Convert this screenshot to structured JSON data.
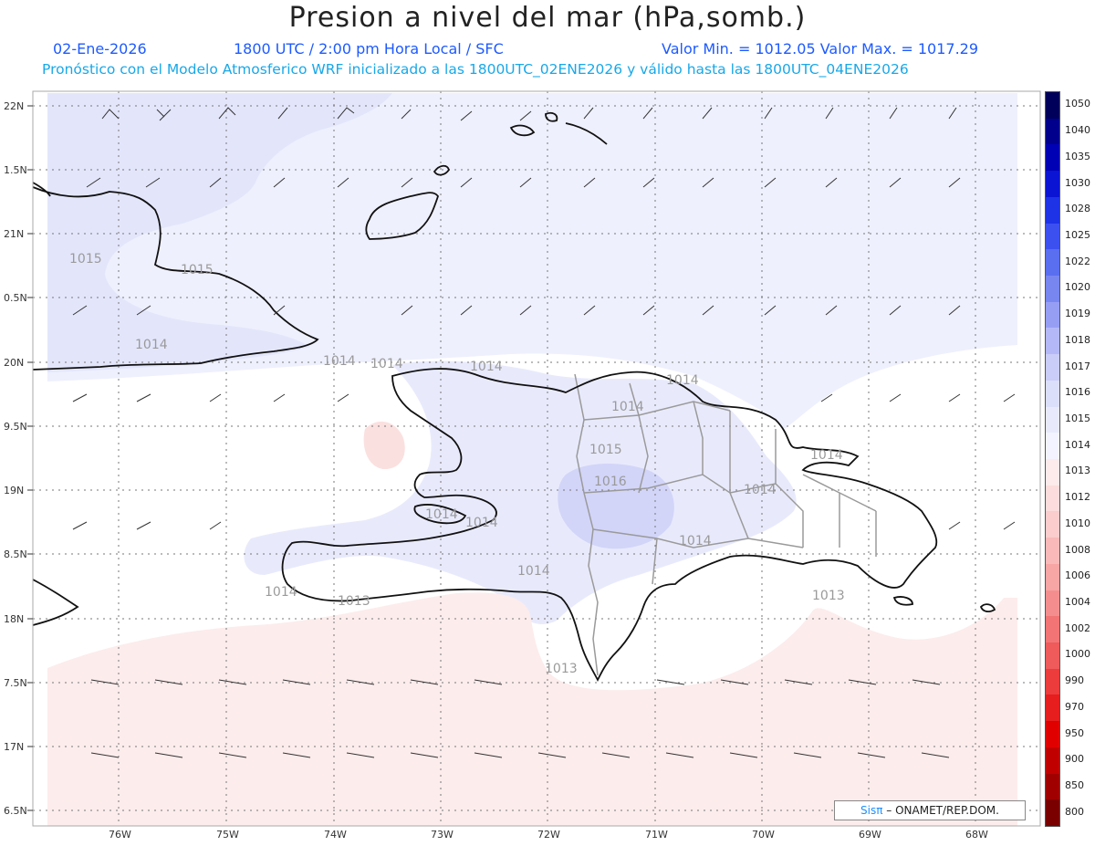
{
  "header": {
    "title": "Presion a nivel del mar (hPa,somb.)",
    "date": "02-Ene-2026",
    "time": "1800 UTC / 2:00 pm Hora Local / SFC",
    "min_max": "Valor Min. = 1012.05  Valor Max. = 1017.29",
    "subtitle": "Pronóstico con el Modelo Atmosferico WRF inicializado a las 1800UTC_02ENE2026 y válido hasta las  1800UTC_04ENE2026"
  },
  "axes": {
    "lat_labels": [
      "22N",
      "1.5N",
      "21N",
      "0.5N",
      "20N",
      "9.5N",
      "19N",
      "8.5N",
      "18N",
      "7.5N",
      "17N",
      "6.5N"
    ],
    "lon_labels": [
      "76W",
      "75W",
      "74W",
      "73W",
      "72W",
      "71W",
      "70W",
      "69W",
      "68W"
    ]
  },
  "contour_labels": [
    "1015",
    "1015",
    "1014",
    "1014",
    "1014",
    "1014",
    "1014",
    "1015",
    "1016",
    "1014",
    "1014",
    "1014",
    "1014",
    "1014",
    "1014",
    "1013",
    "1014",
    "1014",
    "1013",
    "1013"
  ],
  "legend": {
    "levels": [
      "1050",
      "1040",
      "1035",
      "1030",
      "1028",
      "1025",
      "1022",
      "1020",
      "1019",
      "1018",
      "1017",
      "1016",
      "1015",
      "1014",
      "1013",
      "1012",
      "1010",
      "1008",
      "1006",
      "1004",
      "1002",
      "1000",
      "990",
      "970",
      "950",
      "900",
      "850",
      "800"
    ],
    "colors": [
      "#00005a",
      "#00008c",
      "#0000b4",
      "#0a14d2",
      "#1e32e6",
      "#3c50f0",
      "#5a6ef0",
      "#7886f0",
      "#969ef4",
      "#b4b8f6",
      "#cacdf8",
      "#dcdffa",
      "#e8eafc",
      "#f2f3fe",
      "#fdeaea",
      "#fcdcdc",
      "#fbcdcd",
      "#f9b9b9",
      "#f7a5a5",
      "#f48e8e",
      "#f27474",
      "#ef5a5a",
      "#ec3c3c",
      "#e61e1e",
      "#e00000",
      "#c00000",
      "#a00000",
      "#7a0000"
    ]
  },
  "credit": {
    "sis": "Sisπ",
    "org": "– ONAMET/REP.DOM."
  }
}
